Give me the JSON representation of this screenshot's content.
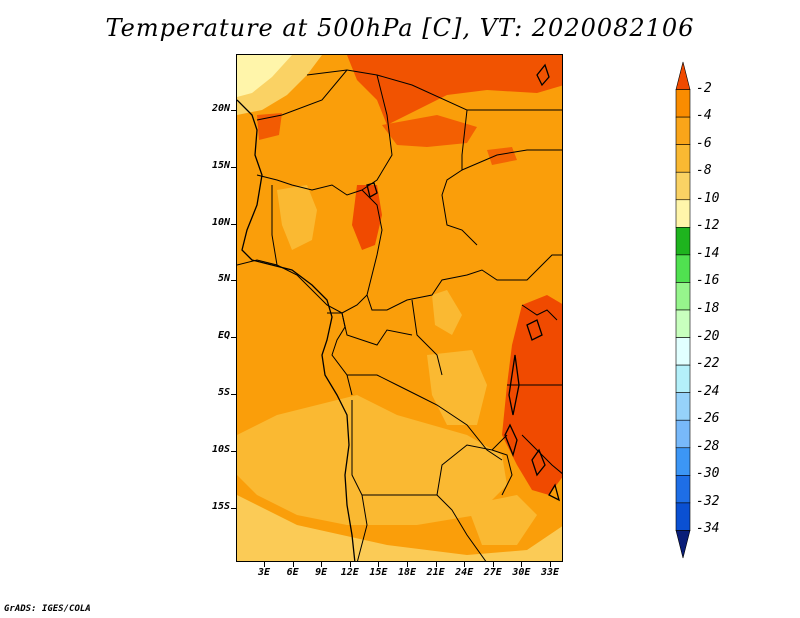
{
  "title": "Temperature at 500hPa [C], VT: 2020082106",
  "credit": "GrADS: IGES/COLA",
  "lat_labels": [
    "20N",
    "15N",
    "10N",
    "5N",
    "EQ",
    "5S",
    "10S",
    "15S"
  ],
  "lon_labels": [
    "3E",
    "6E",
    "9E",
    "12E",
    "15E",
    "18E",
    "21E",
    "24E",
    "27E",
    "30E",
    "33E"
  ],
  "colorbar": {
    "labels": [
      "-2",
      "-4",
      "-6",
      "-8",
      "-10",
      "-12",
      "-14",
      "-16",
      "-18",
      "-20",
      "-22",
      "-24",
      "-26",
      "-28",
      "-30",
      "-32",
      "-34"
    ],
    "colors": [
      "#f04a00",
      "#fa8c00",
      "#faa519",
      "#fab932",
      "#fad264",
      "#fff5aa",
      "#1eb41e",
      "#50e150",
      "#96f58c",
      "#c8ffbe",
      "#e1ffff",
      "#b4f0fa",
      "#96d2fa",
      "#78b9fa",
      "#3c96f5",
      "#1e6ee6",
      "#0a50d2",
      "#0a1e78"
    ]
  },
  "legend_colors": {
    "warm": "#f04a00",
    "main": "#fa9e0a",
    "light": "#fab932",
    "pale": "#fad264",
    "palest": "#fff5aa"
  }
}
